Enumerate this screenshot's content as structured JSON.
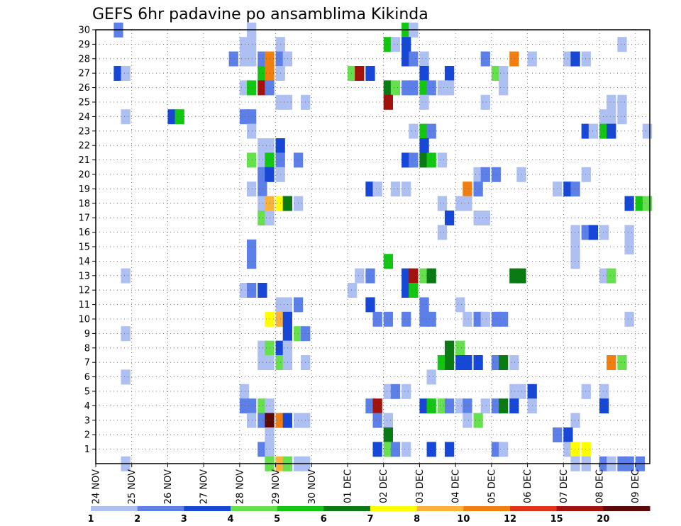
{
  "chart_data": {
    "type": "heatmap",
    "title": "GEFS 6hr padavine po ansamblima Kikinda",
    "x_tick_labels": [
      "24 NOV",
      "25 NOV",
      "26 NOV",
      "27 NOV",
      "28 NOV",
      "29 NOV",
      "30 NOV",
      "01 DEC",
      "02 DEC",
      "03 DEC",
      "04 DEC",
      "05 DEC",
      "06 DEC",
      "07 DEC",
      "08 DEC",
      "09 DEC"
    ],
    "y_tick_labels": [
      "1",
      "2",
      "3",
      "4",
      "5",
      "6",
      "7",
      "8",
      "9",
      "10",
      "11",
      "12",
      "13",
      "14",
      "15",
      "16",
      "17",
      "18",
      "19",
      "20",
      "21",
      "22",
      "23",
      "24",
      "25",
      "26",
      "27",
      "28",
      "29",
      "30"
    ],
    "y_range": [
      0,
      30
    ],
    "x_range_days": [
      0,
      15.4
    ],
    "grid": true,
    "colorbar": {
      "levels": [
        "1",
        "2",
        "3",
        "4",
        "5",
        "6",
        "7",
        "8",
        "10",
        "12",
        "15",
        "20"
      ],
      "colors": [
        "#aebff2",
        "#5d7fe8",
        "#1747d6",
        "#66e04e",
        "#14c614",
        "#0a7a12",
        "#ffff00",
        "#fdb33a",
        "#f07f10",
        "#e0331a",
        "#a3110d",
        "#5a0808"
      ]
    },
    "cells": [
      [
        0.5,
        30,
        2
      ],
      [
        4.2,
        30,
        1
      ],
      [
        8.5,
        30,
        5
      ],
      [
        8.7,
        30,
        1
      ],
      [
        4,
        29,
        1
      ],
      [
        4.2,
        29,
        1
      ],
      [
        5,
        29,
        1
      ],
      [
        8,
        29,
        5
      ],
      [
        8.2,
        29,
        1
      ],
      [
        8.5,
        29,
        3
      ],
      [
        14.5,
        29,
        1
      ],
      [
        3.7,
        28,
        2
      ],
      [
        4,
        28,
        1
      ],
      [
        4.2,
        28,
        1
      ],
      [
        4.5,
        28,
        2
      ],
      [
        4.7,
        28,
        10
      ],
      [
        5,
        28,
        2
      ],
      [
        5.2,
        28,
        1
      ],
      [
        8.5,
        28,
        3
      ],
      [
        8.7,
        28,
        2
      ],
      [
        9,
        28,
        1
      ],
      [
        10.7,
        28,
        2
      ],
      [
        11.5,
        28,
        10
      ],
      [
        12,
        28,
        1
      ],
      [
        13,
        28,
        1
      ],
      [
        13.2,
        28,
        3
      ],
      [
        13.5,
        28,
        1
      ],
      [
        0.5,
        27,
        3
      ],
      [
        0.7,
        27,
        1
      ],
      [
        4.5,
        27,
        5
      ],
      [
        4.7,
        27,
        10
      ],
      [
        5,
        27,
        1
      ],
      [
        7,
        27,
        4
      ],
      [
        7.2,
        27,
        15
      ],
      [
        7.5,
        27,
        3
      ],
      [
        9,
        27,
        3
      ],
      [
        9.7,
        27,
        3
      ],
      [
        11,
        27,
        4
      ],
      [
        11.2,
        27,
        1
      ],
      [
        4,
        26,
        1
      ],
      [
        4.2,
        26,
        5
      ],
      [
        4.5,
        26,
        15
      ],
      [
        4.7,
        26,
        2
      ],
      [
        8,
        26,
        6
      ],
      [
        8.2,
        26,
        4
      ],
      [
        8.5,
        26,
        2
      ],
      [
        8.7,
        26,
        2
      ],
      [
        9,
        26,
        5
      ],
      [
        9.2,
        26,
        2
      ],
      [
        9.5,
        26,
        1
      ],
      [
        9.7,
        26,
        1
      ],
      [
        11.2,
        26,
        1
      ],
      [
        5,
        25,
        1
      ],
      [
        5.2,
        25,
        1
      ],
      [
        5.7,
        25,
        1
      ],
      [
        8,
        25,
        15
      ],
      [
        9,
        25,
        1
      ],
      [
        10.7,
        25,
        1
      ],
      [
        14.2,
        25,
        1
      ],
      [
        14.5,
        25,
        1
      ],
      [
        0.7,
        24,
        1
      ],
      [
        2,
        24,
        3
      ],
      [
        2.2,
        24,
        5
      ],
      [
        4,
        24,
        2
      ],
      [
        4.2,
        24,
        2
      ],
      [
        14,
        24,
        1
      ],
      [
        14.2,
        24,
        1
      ],
      [
        14.5,
        24,
        1
      ],
      [
        4.2,
        23,
        1
      ],
      [
        8.7,
        23,
        1
      ],
      [
        9,
        23,
        5
      ],
      [
        9.2,
        23,
        2
      ],
      [
        13.5,
        23,
        3
      ],
      [
        13.7,
        23,
        1
      ],
      [
        14,
        23,
        5
      ],
      [
        14.2,
        23,
        3
      ],
      [
        15.2,
        23,
        1
      ],
      [
        4.5,
        22,
        1
      ],
      [
        4.7,
        22,
        1
      ],
      [
        5,
        22,
        3
      ],
      [
        9,
        22,
        3
      ],
      [
        4.2,
        21,
        4
      ],
      [
        4.5,
        21,
        1
      ],
      [
        4.7,
        21,
        5
      ],
      [
        5,
        21,
        2
      ],
      [
        5.5,
        21,
        2
      ],
      [
        8.5,
        21,
        3
      ],
      [
        8.7,
        21,
        2
      ],
      [
        9,
        21,
        6
      ],
      [
        9.2,
        21,
        5
      ],
      [
        9.5,
        21,
        1
      ],
      [
        4.5,
        20,
        2
      ],
      [
        4.7,
        20,
        3
      ],
      [
        5,
        20,
        1
      ],
      [
        10.5,
        20,
        1
      ],
      [
        10.7,
        20,
        2
      ],
      [
        11,
        20,
        2
      ],
      [
        11.7,
        20,
        1
      ],
      [
        13.5,
        20,
        1
      ],
      [
        4.2,
        19,
        1
      ],
      [
        4.5,
        19,
        2
      ],
      [
        7.5,
        19,
        3
      ],
      [
        7.7,
        19,
        1
      ],
      [
        8.2,
        19,
        1
      ],
      [
        8.5,
        19,
        1
      ],
      [
        10.2,
        19,
        10
      ],
      [
        10.5,
        19,
        2
      ],
      [
        12.7,
        19,
        1
      ],
      [
        13,
        19,
        3
      ],
      [
        13.2,
        19,
        2
      ],
      [
        4.5,
        18,
        1
      ],
      [
        4.7,
        18,
        8
      ],
      [
        5,
        18,
        7
      ],
      [
        5.2,
        18,
        6
      ],
      [
        5.5,
        18,
        1
      ],
      [
        9.5,
        18,
        1
      ],
      [
        10,
        18,
        1
      ],
      [
        10.2,
        18,
        1
      ],
      [
        14.7,
        18,
        3
      ],
      [
        15,
        18,
        5
      ],
      [
        15.2,
        18,
        4
      ],
      [
        4.5,
        17,
        4
      ],
      [
        4.7,
        17,
        1
      ],
      [
        9.7,
        17,
        3
      ],
      [
        10.5,
        17,
        1
      ],
      [
        10.7,
        17,
        1
      ],
      [
        9.5,
        16,
        1
      ],
      [
        13.2,
        16,
        1
      ],
      [
        13.5,
        16,
        2
      ],
      [
        13.7,
        16,
        3
      ],
      [
        14,
        16,
        1
      ],
      [
        14.7,
        16,
        1
      ],
      [
        4.2,
        15,
        2
      ],
      [
        13.2,
        15,
        1
      ],
      [
        14.7,
        15,
        1
      ],
      [
        4.2,
        14,
        2
      ],
      [
        8,
        14,
        5
      ],
      [
        13.2,
        14,
        1
      ],
      [
        0.7,
        13,
        1
      ],
      [
        7.2,
        13,
        1
      ],
      [
        7.5,
        13,
        2
      ],
      [
        8.5,
        13,
        3
      ],
      [
        8.7,
        13,
        15
      ],
      [
        9,
        13,
        4
      ],
      [
        9.2,
        13,
        6
      ],
      [
        11.5,
        13,
        6
      ],
      [
        11.7,
        13,
        6
      ],
      [
        14,
        13,
        1
      ],
      [
        14.2,
        13,
        4
      ],
      [
        4,
        12,
        1
      ],
      [
        4.2,
        12,
        2
      ],
      [
        4.5,
        12,
        3
      ],
      [
        7,
        12,
        1
      ],
      [
        8.5,
        12,
        3
      ],
      [
        8.7,
        12,
        5
      ],
      [
        5,
        11,
        1
      ],
      [
        5.2,
        11,
        1
      ],
      [
        5.5,
        11,
        2
      ],
      [
        7.5,
        11,
        3
      ],
      [
        9,
        11,
        2
      ],
      [
        10,
        11,
        1
      ],
      [
        4.7,
        10,
        7
      ],
      [
        5,
        10,
        8
      ],
      [
        5.2,
        10,
        3
      ],
      [
        7.7,
        10,
        2
      ],
      [
        8,
        10,
        2
      ],
      [
        8.5,
        10,
        2
      ],
      [
        9,
        10,
        2
      ],
      [
        9.2,
        10,
        2
      ],
      [
        10.2,
        10,
        1
      ],
      [
        10.5,
        10,
        2
      ],
      [
        10.7,
        10,
        1
      ],
      [
        11,
        10,
        2
      ],
      [
        11.2,
        10,
        2
      ],
      [
        14.7,
        10,
        1
      ],
      [
        0.7,
        9,
        1
      ],
      [
        5.2,
        9,
        3
      ],
      [
        5.5,
        9,
        4
      ],
      [
        5.7,
        9,
        2
      ],
      [
        4.5,
        8,
        1
      ],
      [
        4.7,
        8,
        4
      ],
      [
        5,
        8,
        3
      ],
      [
        5.2,
        8,
        1
      ],
      [
        9.7,
        8,
        6
      ],
      [
        10,
        8,
        4
      ],
      [
        4.5,
        7,
        1
      ],
      [
        4.7,
        7,
        1
      ],
      [
        5,
        7,
        4
      ],
      [
        5.2,
        7,
        1
      ],
      [
        5.7,
        7,
        1
      ],
      [
        9.5,
        7,
        5
      ],
      [
        9.7,
        7,
        6
      ],
      [
        10,
        7,
        3
      ],
      [
        10.2,
        7,
        3
      ],
      [
        10.5,
        7,
        3
      ],
      [
        11,
        7,
        2
      ],
      [
        11.2,
        7,
        6
      ],
      [
        11.5,
        7,
        1
      ],
      [
        14.2,
        7,
        10
      ],
      [
        14.5,
        7,
        4
      ],
      [
        0.7,
        6,
        1
      ],
      [
        9.2,
        6,
        1
      ],
      [
        4,
        5,
        1
      ],
      [
        8,
        5,
        1
      ],
      [
        8.2,
        5,
        2
      ],
      [
        8.5,
        5,
        1
      ],
      [
        11.5,
        5,
        1
      ],
      [
        11.7,
        5,
        1
      ],
      [
        12,
        5,
        3
      ],
      [
        13.5,
        5,
        1
      ],
      [
        14,
        5,
        1
      ],
      [
        4,
        4,
        2
      ],
      [
        4.2,
        4,
        2
      ],
      [
        4.5,
        4,
        4
      ],
      [
        4.7,
        4,
        1
      ],
      [
        7.5,
        4,
        2
      ],
      [
        7.7,
        4,
        15
      ],
      [
        9,
        4,
        3
      ],
      [
        9.2,
        4,
        5
      ],
      [
        9.5,
        4,
        4
      ],
      [
        9.7,
        4,
        2
      ],
      [
        10,
        4,
        1
      ],
      [
        10.2,
        4,
        2
      ],
      [
        10.7,
        4,
        1
      ],
      [
        11,
        4,
        2
      ],
      [
        11.2,
        4,
        6
      ],
      [
        11.5,
        4,
        3
      ],
      [
        12,
        4,
        1
      ],
      [
        14,
        4,
        3
      ],
      [
        4.2,
        3,
        1
      ],
      [
        4.5,
        3,
        2
      ],
      [
        4.7,
        3,
        20
      ],
      [
        5,
        3,
        10
      ],
      [
        5.2,
        3,
        3
      ],
      [
        5.5,
        3,
        1
      ],
      [
        5.7,
        3,
        1
      ],
      [
        7.7,
        3,
        2
      ],
      [
        8,
        3,
        1
      ],
      [
        10.2,
        3,
        1
      ],
      [
        10.5,
        3,
        4
      ],
      [
        13.2,
        3,
        1
      ],
      [
        4.7,
        2,
        1
      ],
      [
        8,
        2,
        6
      ],
      [
        12.7,
        2,
        2
      ],
      [
        13,
        2,
        3
      ],
      [
        4.5,
        1,
        2
      ],
      [
        4.7,
        1,
        1
      ],
      [
        7.7,
        1,
        3
      ],
      [
        8,
        1,
        4
      ],
      [
        8.2,
        1,
        2
      ],
      [
        8.5,
        1,
        1
      ],
      [
        9.2,
        1,
        3
      ],
      [
        9.7,
        1,
        3
      ],
      [
        11,
        1,
        2
      ],
      [
        11.2,
        1,
        1
      ],
      [
        13,
        1,
        1
      ],
      [
        13.2,
        1,
        7
      ],
      [
        13.5,
        1,
        7
      ],
      [
        0.7,
        0,
        1
      ],
      [
        4.7,
        0,
        4
      ],
      [
        5,
        0,
        8
      ],
      [
        5.2,
        0,
        4
      ],
      [
        5.5,
        0,
        1
      ],
      [
        5.7,
        0,
        1
      ],
      [
        13.2,
        0,
        1
      ],
      [
        13.5,
        0,
        1
      ],
      [
        14,
        0,
        2
      ],
      [
        14.2,
        0,
        1
      ],
      [
        14.5,
        0,
        2
      ],
      [
        14.7,
        0,
        2
      ],
      [
        15,
        0,
        2
      ]
    ]
  }
}
